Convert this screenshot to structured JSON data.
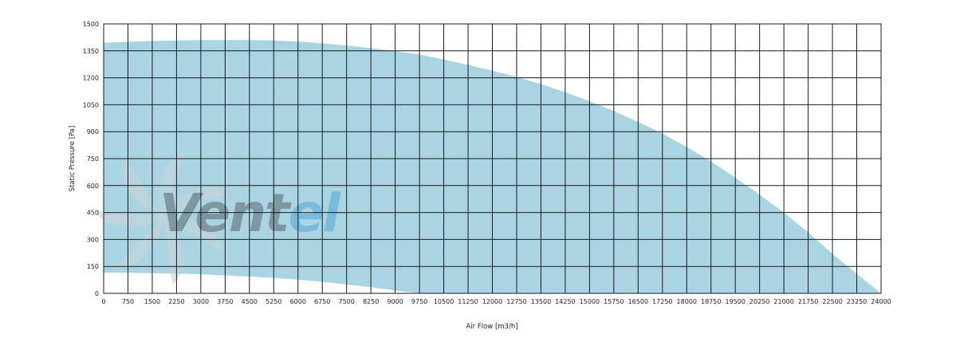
{
  "chart_data": {
    "type": "area",
    "xlabel": "Air Flow [m3/h]",
    "ylabel": "Static Pressure [Pa]",
    "xlim": [
      0,
      24000
    ],
    "ylim": [
      0,
      1500
    ],
    "x_ticks": [
      0,
      750,
      1500,
      2250,
      3000,
      3750,
      4500,
      5250,
      6000,
      6750,
      7500,
      8250,
      9000,
      9750,
      10500,
      11250,
      12000,
      12750,
      13500,
      14250,
      15000,
      15750,
      16500,
      17250,
      18000,
      18750,
      19500,
      20250,
      21000,
      21750,
      22500,
      23250,
      24000
    ],
    "y_ticks": [
      0,
      150,
      300,
      450,
      600,
      750,
      900,
      1050,
      1200,
      1350,
      1500
    ],
    "grid": true,
    "fill_color": "#a9d5e3",
    "series": [
      {
        "role": "upper-boundary",
        "x": [
          0,
          750,
          1500,
          2250,
          3000,
          3750,
          4500,
          5250,
          6000,
          6750,
          7500,
          8250,
          9000,
          9750,
          10500,
          11250,
          12000,
          12750,
          13500,
          14250,
          15000,
          15750,
          16500,
          17250,
          18000,
          18750,
          19500,
          20250,
          21000,
          21750,
          22500,
          23250,
          24000
        ],
        "y": [
          1395,
          1400,
          1405,
          1408,
          1410,
          1410,
          1410,
          1408,
          1402,
          1392,
          1380,
          1365,
          1348,
          1330,
          1302,
          1272,
          1240,
          1205,
          1165,
          1120,
          1070,
          1015,
          955,
          890,
          815,
          735,
          645,
          550,
          450,
          340,
          220,
          110,
          0
        ]
      },
      {
        "role": "lower-boundary",
        "x": [
          0,
          750,
          1500,
          2250,
          3000,
          3750,
          4500,
          5250,
          6000,
          6750,
          7500,
          8250,
          9000,
          9750
        ],
        "y": [
          115,
          114,
          112,
          110,
          106,
          100,
          94,
          86,
          76,
          64,
          50,
          34,
          16,
          0
        ]
      }
    ]
  },
  "watermark": {
    "brand": "Ventel",
    "letters_dark": "Vent",
    "letters_light": "el",
    "dark_color": "#5a6770",
    "light_color": "#4fa8d8",
    "fan_color": "#c9d2d8"
  }
}
